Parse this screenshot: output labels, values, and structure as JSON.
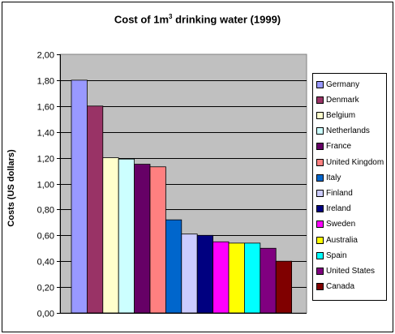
{
  "chart_data": {
    "type": "bar",
    "title_main": "Cost of 1m",
    "title_sup": "3",
    "title_rest": " drinking water (1999)",
    "ylabel": "Costs (US dollars)",
    "ylim": [
      0,
      2
    ],
    "yticks": [
      "0,00",
      "0,20",
      "0,40",
      "0,60",
      "0,80",
      "1,00",
      "1,20",
      "1,40",
      "1,60",
      "1,80",
      "2,00"
    ],
    "ytick_values": [
      0,
      0.2,
      0.4,
      0.6,
      0.8,
      1.0,
      1.2,
      1.4,
      1.6,
      1.8,
      2.0
    ],
    "grid": true,
    "legend_position": "right",
    "plot_background": "#c0c0c0",
    "series": [
      {
        "name": "Germany",
        "value": 1.8,
        "color": "#9999ff"
      },
      {
        "name": "Denmark",
        "value": 1.6,
        "color": "#993366"
      },
      {
        "name": "Belgium",
        "value": 1.2,
        "color": "#ffffcc"
      },
      {
        "name": "Netherlands",
        "value": 1.19,
        "color": "#ccffff"
      },
      {
        "name": "France",
        "value": 1.15,
        "color": "#660066"
      },
      {
        "name": "United Kingdom",
        "value": 1.13,
        "color": "#ff8080"
      },
      {
        "name": "Italy",
        "value": 0.72,
        "color": "#0066cc"
      },
      {
        "name": "Finland",
        "value": 0.61,
        "color": "#ccccff"
      },
      {
        "name": "Ireland",
        "value": 0.6,
        "color": "#000080"
      },
      {
        "name": "Sweden",
        "value": 0.55,
        "color": "#ff00ff"
      },
      {
        "name": "Australia",
        "value": 0.54,
        "color": "#ffff00"
      },
      {
        "name": "Spain",
        "value": 0.54,
        "color": "#00ffff"
      },
      {
        "name": "United States",
        "value": 0.5,
        "color": "#800080"
      },
      {
        "name": "Canada",
        "value": 0.4,
        "color": "#800000"
      }
    ]
  }
}
